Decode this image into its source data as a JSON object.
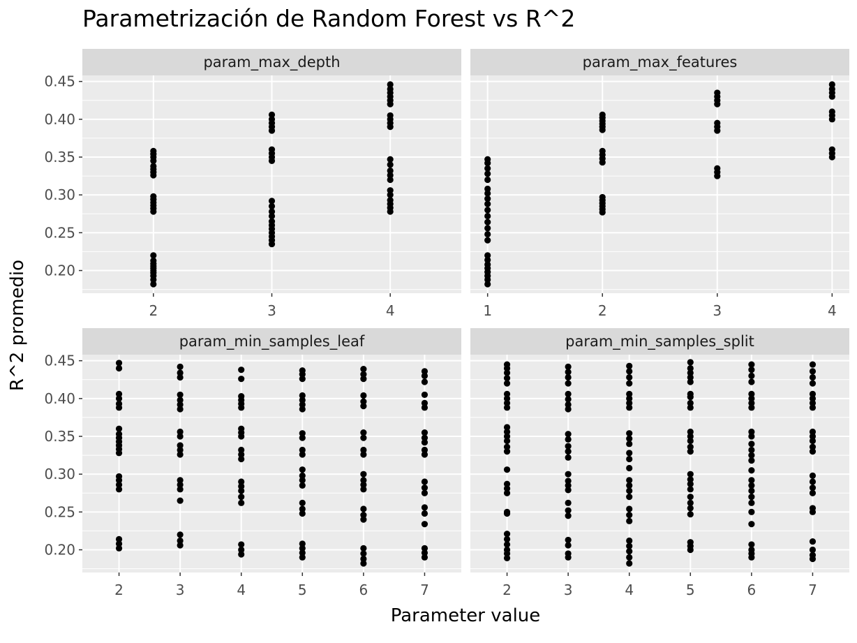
{
  "chart_data": {
    "type": "scatter",
    "title": "Parametrización de Random Forest vs R^2",
    "xlabel": "Parameter value",
    "ylabel": "R^2 promedio",
    "ylim": [
      0.17,
      0.458
    ],
    "y_ticks": [
      "0.20",
      "0.25",
      "0.30",
      "0.35",
      "0.40",
      "0.45"
    ],
    "grid": true,
    "facet_layout": "2x2",
    "colors": {
      "panel": "#ebebeb",
      "strip": "#d9d9d9",
      "grid": "#ffffff",
      "point": "#000000"
    },
    "panels": [
      {
        "name": "param_max_depth",
        "xlim": [
          1.4,
          4.6
        ],
        "x_ticks": [
          2,
          3,
          4
        ],
        "points": [
          {
            "x": 2,
            "y": [
              0.182,
              0.188,
              0.193,
              0.197,
              0.2,
              0.203,
              0.206,
              0.209,
              0.213,
              0.22,
              0.278,
              0.282,
              0.286,
              0.29,
              0.294,
              0.298,
              0.326,
              0.33,
              0.334,
              0.338,
              0.345,
              0.35,
              0.354,
              0.358
            ]
          },
          {
            "x": 3,
            "y": [
              0.235,
              0.24,
              0.245,
              0.25,
              0.255,
              0.26,
              0.265,
              0.272,
              0.278,
              0.285,
              0.292,
              0.345,
              0.35,
              0.355,
              0.36,
              0.385,
              0.39,
              0.395,
              0.4,
              0.406
            ]
          },
          {
            "x": 4,
            "y": [
              0.278,
              0.283,
              0.288,
              0.293,
              0.3,
              0.306,
              0.32,
              0.326,
              0.332,
              0.34,
              0.347,
              0.39,
              0.395,
              0.4,
              0.405,
              0.42,
              0.425,
              0.43,
              0.435,
              0.44,
              0.446
            ]
          }
        ]
      },
      {
        "name": "param_max_features",
        "xlim": [
          0.85,
          4.15
        ],
        "x_ticks": [
          1,
          2,
          3,
          4
        ],
        "points": [
          {
            "x": 1,
            "y": [
              0.182,
              0.188,
              0.193,
              0.198,
              0.203,
              0.208,
              0.214,
              0.22,
              0.24,
              0.248,
              0.256,
              0.264,
              0.272,
              0.28,
              0.288,
              0.295,
              0.302,
              0.308,
              0.32,
              0.328,
              0.335,
              0.342,
              0.347
            ]
          },
          {
            "x": 2,
            "y": [
              0.277,
              0.281,
              0.285,
              0.289,
              0.293,
              0.297,
              0.343,
              0.348,
              0.353,
              0.358,
              0.386,
              0.39,
              0.394,
              0.398,
              0.402,
              0.406
            ]
          },
          {
            "x": 3,
            "y": [
              0.325,
              0.33,
              0.335,
              0.385,
              0.39,
              0.395,
              0.42,
              0.425,
              0.43,
              0.435
            ]
          },
          {
            "x": 4,
            "y": [
              0.35,
              0.355,
              0.36,
              0.4,
              0.405,
              0.41,
              0.43,
              0.435,
              0.44,
              0.446
            ]
          }
        ]
      },
      {
        "name": "param_min_samples_leaf",
        "xlim": [
          1.4,
          7.6
        ],
        "x_ticks": [
          2,
          3,
          4,
          5,
          6,
          7
        ],
        "points": [
          {
            "x": 2,
            "y": [
              0.202,
              0.208,
              0.214,
              0.28,
              0.286,
              0.292,
              0.297,
              0.328,
              0.333,
              0.338,
              0.343,
              0.348,
              0.353,
              0.36,
              0.388,
              0.393,
              0.4,
              0.406,
              0.44,
              0.447
            ]
          },
          {
            "x": 3,
            "y": [
              0.206,
              0.212,
              0.22,
              0.265,
              0.28,
              0.286,
              0.292,
              0.326,
              0.332,
              0.338,
              0.35,
              0.356,
              0.386,
              0.392,
              0.398,
              0.405,
              0.428,
              0.434,
              0.442
            ]
          },
          {
            "x": 4,
            "y": [
              0.194,
              0.2,
              0.207,
              0.262,
              0.27,
              0.278,
              0.284,
              0.29,
              0.32,
              0.326,
              0.332,
              0.35,
              0.355,
              0.36,
              0.388,
              0.393,
              0.398,
              0.403,
              0.426,
              0.438
            ]
          },
          {
            "x": 5,
            "y": [
              0.19,
              0.196,
              0.202,
              0.208,
              0.248,
              0.254,
              0.262,
              0.285,
              0.292,
              0.298,
              0.306,
              0.326,
              0.332,
              0.348,
              0.354,
              0.386,
              0.392,
              0.398,
              0.404,
              0.426,
              0.432,
              0.437
            ]
          },
          {
            "x": 6,
            "y": [
              0.182,
              0.188,
              0.195,
              0.202,
              0.24,
              0.246,
              0.254,
              0.28,
              0.286,
              0.292,
              0.3,
              0.326,
              0.332,
              0.348,
              0.355,
              0.39,
              0.396,
              0.404,
              0.426,
              0.432,
              0.439
            ]
          },
          {
            "x": 7,
            "y": [
              0.19,
              0.196,
              0.202,
              0.234,
              0.248,
              0.256,
              0.275,
              0.282,
              0.29,
              0.326,
              0.332,
              0.342,
              0.348,
              0.355,
              0.388,
              0.394,
              0.405,
              0.422,
              0.43,
              0.436
            ]
          }
        ]
      },
      {
        "name": "param_min_samples_split",
        "xlim": [
          1.4,
          7.6
        ],
        "x_ticks": [
          2,
          3,
          4,
          5,
          6,
          7
        ],
        "points": [
          {
            "x": 2,
            "y": [
              0.189,
              0.195,
              0.2,
              0.207,
              0.214,
              0.221,
              0.248,
              0.25,
              0.275,
              0.281,
              0.287,
              0.306,
              0.33,
              0.336,
              0.344,
              0.35,
              0.356,
              0.362,
              0.388,
              0.394,
              0.4,
              0.406,
              0.42,
              0.427,
              0.434,
              0.44,
              0.445
            ]
          },
          {
            "x": 3,
            "y": [
              0.19,
              0.195,
              0.206,
              0.213,
              0.245,
              0.252,
              0.262,
              0.279,
              0.285,
              0.291,
              0.3,
              0.322,
              0.33,
              0.337,
              0.346,
              0.353,
              0.386,
              0.392,
              0.399,
              0.406,
              0.42,
              0.428,
              0.435,
              0.442
            ]
          },
          {
            "x": 4,
            "y": [
              0.182,
              0.19,
              0.198,
              0.205,
              0.212,
              0.238,
              0.246,
              0.254,
              0.27,
              0.278,
              0.285,
              0.292,
              0.308,
              0.32,
              0.328,
              0.34,
              0.347,
              0.354,
              0.388,
              0.394,
              0.4,
              0.406,
              0.42,
              0.428,
              0.436,
              0.443
            ]
          },
          {
            "x": 5,
            "y": [
              0.2,
              0.205,
              0.21,
              0.247,
              0.255,
              0.262,
              0.27,
              0.28,
              0.287,
              0.293,
              0.3,
              0.33,
              0.336,
              0.344,
              0.35,
              0.356,
              0.388,
              0.394,
              0.402,
              0.406,
              0.422,
              0.428,
              0.434,
              0.44,
              0.448
            ]
          },
          {
            "x": 6,
            "y": [
              0.19,
              0.195,
              0.2,
              0.207,
              0.234,
              0.25,
              0.262,
              0.27,
              0.278,
              0.285,
              0.292,
              0.305,
              0.318,
              0.325,
              0.332,
              0.34,
              0.35,
              0.356,
              0.388,
              0.394,
              0.4,
              0.406,
              0.422,
              0.43,
              0.438,
              0.445
            ]
          },
          {
            "x": 7,
            "y": [
              0.188,
              0.193,
              0.2,
              0.211,
              0.25,
              0.255,
              0.275,
              0.282,
              0.29,
              0.298,
              0.33,
              0.336,
              0.344,
              0.35,
              0.356,
              0.388,
              0.394,
              0.4,
              0.406,
              0.42,
              0.428,
              0.436,
              0.445
            ]
          }
        ]
      }
    ]
  }
}
